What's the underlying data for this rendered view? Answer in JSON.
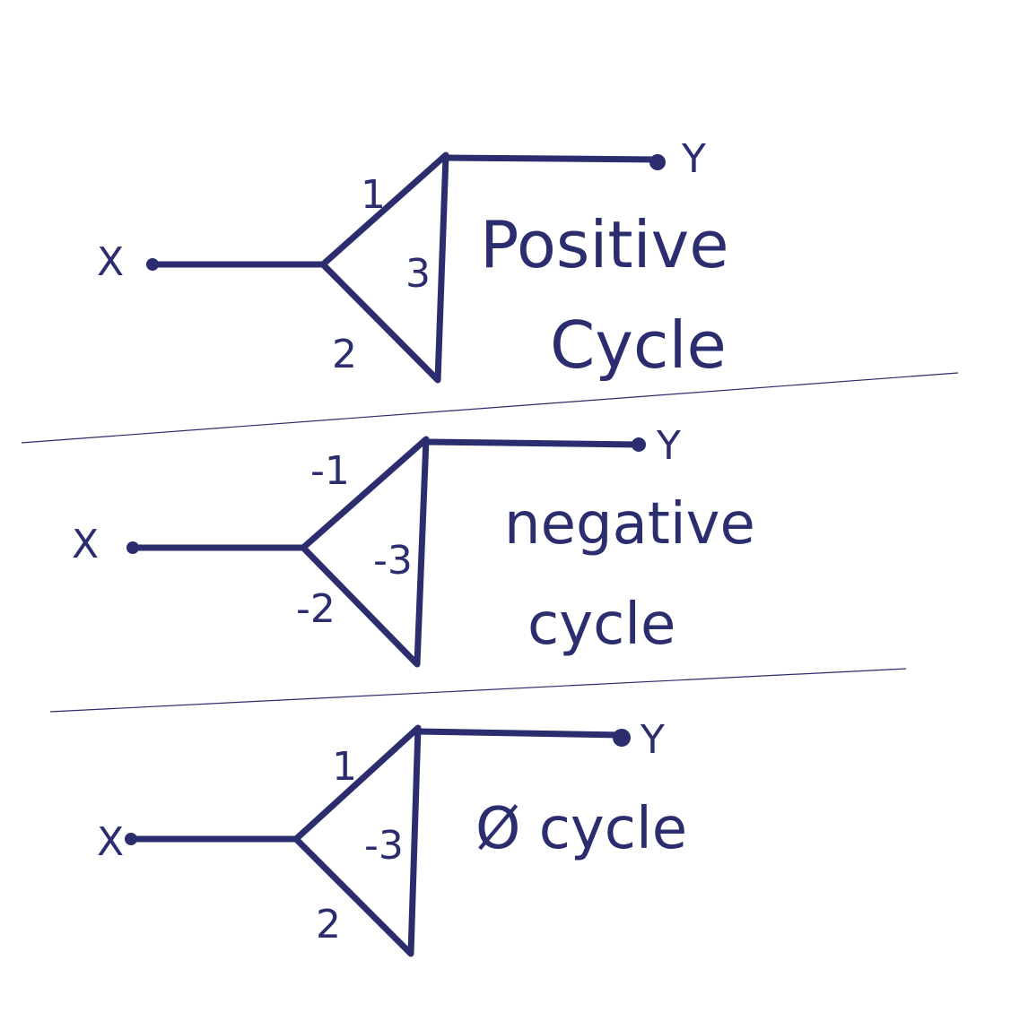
{
  "diagrams": [
    {
      "x_label": "X",
      "y_label": "Y",
      "weights": [
        "1",
        "2",
        "3"
      ],
      "caption": [
        "Positive",
        "Cycle"
      ]
    },
    {
      "x_label": "X",
      "y_label": "Y",
      "weights": [
        "-1",
        "-2",
        "-3"
      ],
      "caption": [
        "negative",
        "cycle"
      ]
    },
    {
      "x_label": "X",
      "y_label": "Y",
      "weights": [
        "1",
        "2",
        "-3"
      ],
      "caption": [
        "Ø cycle"
      ]
    }
  ],
  "ink_color": "#2b2d6e"
}
